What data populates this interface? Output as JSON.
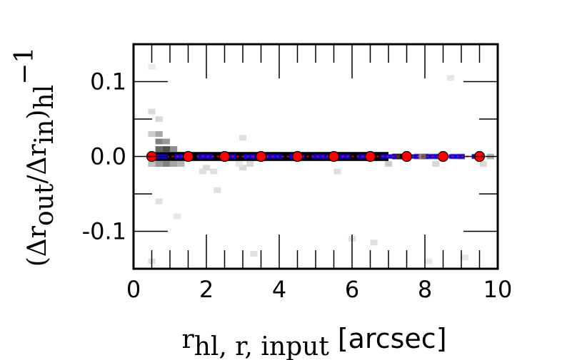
{
  "chart_data": {
    "type": "scatter",
    "xlabel": {
      "main": "r",
      "sub": "hl, r, input",
      "unit": "[arcsec]"
    },
    "ylabel": {
      "open": "(Δr",
      "sub1": "out",
      "mid": "/Δr",
      "sub2": "in",
      "close": ")",
      "sub3": "hl",
      "sup": "−1"
    },
    "xlim": [
      0,
      10
    ],
    "ylim": [
      -0.15,
      0.15
    ],
    "x_ticks": [
      0,
      2,
      4,
      6,
      8,
      10
    ],
    "x_tick_labels": [
      "0",
      "2",
      "4",
      "6",
      "8",
      "10"
    ],
    "y_ticks": [
      -0.1,
      0.0,
      0.1
    ],
    "y_tick_labels": [
      "-0.1",
      "0.0",
      "0.1"
    ],
    "grid": false,
    "series": [
      {
        "style": "red dotted line with red circle markers",
        "color": "#ff0000",
        "x": [
          0.5,
          1.5,
          2.5,
          3.5,
          4.5,
          5.5,
          6.5,
          7.5,
          8.5,
          9.5
        ],
        "y": [
          0.0,
          0.0,
          0.0,
          0.0,
          0.0,
          0.0,
          0.0,
          0.0,
          0.0,
          0.0
        ]
      },
      {
        "style": "blue dashed line",
        "color": "#0000ff",
        "x": [
          0.5,
          9.5
        ],
        "y": [
          0.0,
          0.0
        ]
      }
    ],
    "density_background": {
      "colormap": "gray_r",
      "cells": [
        [
          0.5,
          0.0,
          0.55
        ],
        [
          0.5,
          0.03,
          0.2
        ],
        [
          0.5,
          0.06,
          0.15
        ],
        [
          0.5,
          -0.01,
          0.25
        ],
        [
          0.7,
          0.0,
          0.9
        ],
        [
          0.7,
          0.01,
          0.6
        ],
        [
          0.7,
          0.02,
          0.5
        ],
        [
          0.7,
          0.03,
          0.35
        ],
        [
          0.7,
          0.05,
          0.15
        ],
        [
          0.7,
          -0.01,
          0.4
        ],
        [
          0.9,
          0.0,
          1.0
        ],
        [
          0.9,
          0.01,
          0.7
        ],
        [
          0.9,
          0.02,
          0.4
        ],
        [
          0.9,
          -0.01,
          0.5
        ],
        [
          1.1,
          0.0,
          0.95
        ],
        [
          1.1,
          0.01,
          0.45
        ],
        [
          1.1,
          -0.01,
          0.35
        ],
        [
          1.3,
          0.0,
          0.9
        ],
        [
          1.3,
          -0.01,
          0.3
        ],
        [
          0.5,
          -0.14,
          0.12
        ],
        [
          0.5,
          0.12,
          0.08
        ],
        [
          0.7,
          -0.06,
          0.12
        ],
        [
          1.2,
          -0.08,
          0.1
        ],
        [
          2.0,
          -0.015,
          0.15
        ],
        [
          2.2,
          -0.02,
          0.12
        ],
        [
          3.0,
          -0.015,
          0.15
        ],
        [
          2.9,
          -0.01,
          0.1
        ],
        [
          3.0,
          0.025,
          0.12
        ],
        [
          3.2,
          -0.01,
          0.15
        ],
        [
          1.9,
          -0.02,
          0.12
        ],
        [
          5.6,
          -0.02,
          0.12
        ],
        [
          2.3,
          -0.045,
          0.12
        ],
        [
          3.3,
          -0.13,
          0.12
        ],
        [
          6.0,
          -0.11,
          0.12
        ],
        [
          6.6,
          -0.115,
          0.12
        ],
        [
          8.1,
          -0.14,
          0.1
        ],
        [
          9.1,
          -0.135,
          0.1
        ],
        [
          8.7,
          0.105,
          0.1
        ],
        [
          7.2,
          0.0,
          0.85
        ],
        [
          7.4,
          0.0,
          0.95
        ],
        [
          7.8,
          0.0,
          0.5
        ],
        [
          8.0,
          0.0,
          0.6
        ],
        [
          8.2,
          0.0,
          0.45
        ],
        [
          8.4,
          0.0,
          0.55
        ],
        [
          8.8,
          0.0,
          0.4
        ],
        [
          9.0,
          0.0,
          0.5
        ],
        [
          9.4,
          0.0,
          0.35
        ],
        [
          9.8,
          0.0,
          0.3
        ],
        [
          6.9,
          0.0,
          0.7
        ],
        [
          7.0,
          -0.01,
          0.2
        ],
        [
          8.3,
          -0.01,
          0.15
        ],
        [
          9.6,
          -0.01,
          0.15
        ]
      ]
    }
  }
}
